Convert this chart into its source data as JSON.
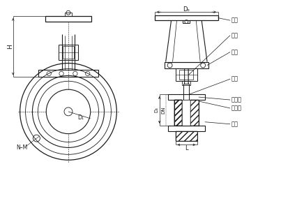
{
  "bg_color": "#ffffff",
  "line_color": "#1a1a1a",
  "text_color": "#1a1a1a",
  "fig_width": 4.03,
  "fig_height": 2.98,
  "dpi": 100,
  "labels": {
    "H": "H",
    "D1": "D₁",
    "NM": "N–M",
    "Do": "Dₒ",
    "valve_stem": "阀杆",
    "handwheel": "手轮",
    "bracket": "支架",
    "gate": "阀板",
    "seal_ring": "密封圈",
    "hard_seal": "硬密封",
    "body": "阀体",
    "D2": "D₂",
    "DN": "DN",
    "L": "L"
  }
}
